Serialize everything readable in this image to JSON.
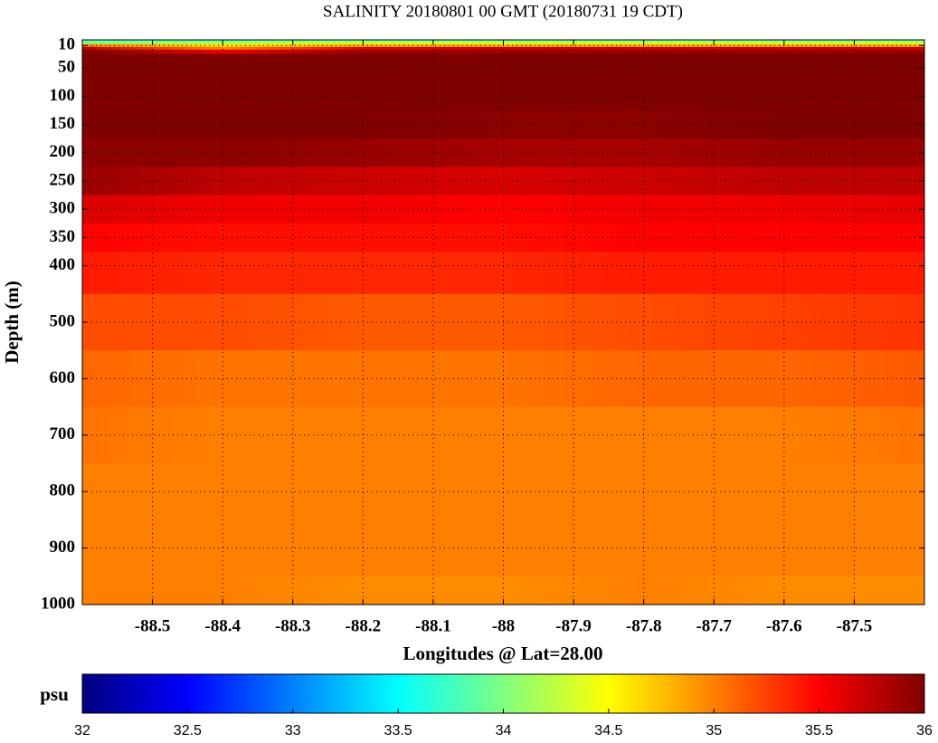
{
  "chart_data": {
    "type": "heatmap",
    "title": "SALINITY 20180801 00 GMT (20180731 19 CDT)",
    "x_label": "Longitudes @ Lat=28.00",
    "y_label": "Depth (m)",
    "x": [
      -88.6,
      -88.4,
      -88.2,
      -88.0,
      -87.8,
      -87.6,
      -87.4
    ],
    "y": [
      0,
      5,
      10,
      15,
      20,
      30,
      50,
      100,
      150,
      200,
      250,
      300,
      350,
      400,
      500,
      600,
      700,
      800,
      900,
      1000
    ],
    "values": [
      [
        33.7,
        33.6,
        33.8,
        33.8,
        33.8,
        33.8,
        33.8
      ],
      [
        34.0,
        34.2,
        34.3,
        34.3,
        34.3,
        34.3,
        34.3
      ],
      [
        35.0,
        34.6,
        34.8,
        34.8,
        34.8,
        34.8,
        34.8
      ],
      [
        35.8,
        35.0,
        35.6,
        35.7,
        35.7,
        35.7,
        35.7
      ],
      [
        36.0,
        35.6,
        35.9,
        35.9,
        35.9,
        35.9,
        35.9
      ],
      [
        36.0,
        36.0,
        36.0,
        36.0,
        36.0,
        36.0,
        36.0
      ],
      [
        36.0,
        36.0,
        36.0,
        36.0,
        36.0,
        36.0,
        36.0
      ],
      [
        36.0,
        36.0,
        36.0,
        36.0,
        36.0,
        36.0,
        36.0
      ],
      [
        36.0,
        36.0,
        36.0,
        35.95,
        35.95,
        36.0,
        36.0
      ],
      [
        35.95,
        35.95,
        35.9,
        35.85,
        35.85,
        35.9,
        35.9
      ],
      [
        35.9,
        35.75,
        35.7,
        35.65,
        35.7,
        35.75,
        35.75
      ],
      [
        35.65,
        35.55,
        35.55,
        35.5,
        35.55,
        35.55,
        35.6
      ],
      [
        35.5,
        35.45,
        35.45,
        35.45,
        35.5,
        35.5,
        35.5
      ],
      [
        35.4,
        35.35,
        35.35,
        35.35,
        35.4,
        35.4,
        35.4
      ],
      [
        35.2,
        35.2,
        35.15,
        35.15,
        35.2,
        35.25,
        35.3
      ],
      [
        35.1,
        35.05,
        35.05,
        35.05,
        35.1,
        35.1,
        35.15
      ],
      [
        35.05,
        35.0,
        35.0,
        35.0,
        35.0,
        35.0,
        35.05
      ],
      [
        35.0,
        35.0,
        35.0,
        35.0,
        35.0,
        35.0,
        35.0
      ],
      [
        35.0,
        35.0,
        35.0,
        35.0,
        35.0,
        35.0,
        35.0
      ],
      [
        35.0,
        35.0,
        34.95,
        34.95,
        35.0,
        34.95,
        34.95
      ]
    ],
    "xlim": [
      -88.6,
      -87.4
    ],
    "ylim": [
      0,
      1000
    ],
    "y_inverted": true,
    "xticks": [
      -88.5,
      -88.4,
      -88.3,
      -88.2,
      -88.1,
      -88,
      -87.9,
      -87.8,
      -87.7,
      -87.6,
      -87.5
    ],
    "yticks": [
      10,
      50,
      100,
      150,
      200,
      250,
      300,
      350,
      400,
      500,
      600,
      700,
      800,
      900,
      1000
    ],
    "grid": true,
    "colormap": "jet",
    "colorbar": {
      "label": "psu",
      "lim": [
        32,
        36
      ],
      "ticks": [
        32,
        32.5,
        33,
        33.5,
        34,
        34.5,
        35,
        35.5,
        36
      ]
    }
  }
}
